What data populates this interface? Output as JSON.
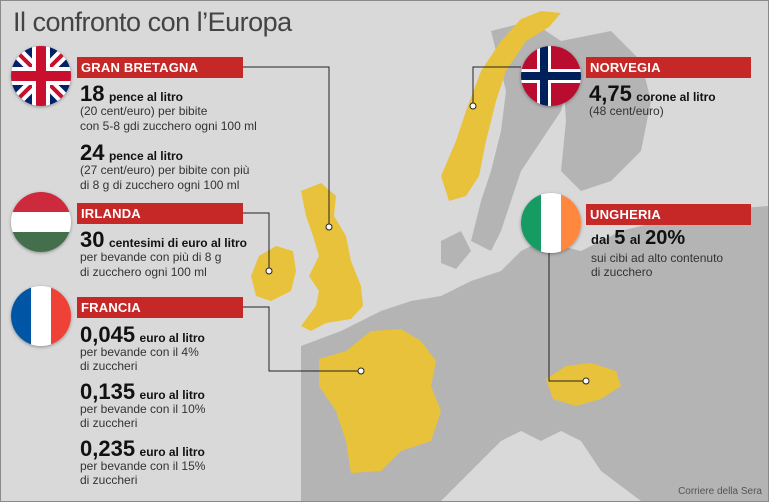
{
  "title": "Il confronto con l’Europa",
  "credit": "Corriere della Sera",
  "colors": {
    "highlight": "#e8c23a",
    "land": "#b4b4b4",
    "sea": "#d9d9d9",
    "accent": "#c62828"
  },
  "gb": {
    "label": "GRAN BRETAGNA",
    "flag": "uk-flag-icon",
    "rate1": {
      "value": "18",
      "unit": "pence al litro",
      "note1": "(20 cent/euro) per bibite",
      "note2": "con 5-8 gdi zucchero ogni 100 ml"
    },
    "rate2": {
      "value": "24",
      "unit": "pence al litro",
      "note1": "(27 cent/euro) per bibite con più",
      "note2": "di 8 g di zucchero ogni 100 ml"
    }
  },
  "ie": {
    "label": "IRLANDA",
    "flag": "hungary-flag-icon",
    "value": "30",
    "unit": "centesimi di euro al litro",
    "note1": "per bevande con più di 8 g",
    "note2": "di zucchero ogni 100 ml"
  },
  "fr": {
    "label": "FRANCIA",
    "flag": "france-flag-icon",
    "rates": [
      {
        "value": "0,045",
        "unit": "euro al litro",
        "note1": "per bevande con il 4%",
        "note2": "di zuccheri"
      },
      {
        "value": "0,135",
        "unit": "euro al litro",
        "note1": "per bevande con il 10%",
        "note2": "di zuccheri"
      },
      {
        "value": "0,235",
        "unit": "euro al litro",
        "note1": "per bevande con il 15%",
        "note2": "di zuccheri"
      }
    ]
  },
  "no": {
    "label": "NORVEGIA",
    "flag": "norway-flag-icon",
    "value": "4,75",
    "unit": "corone al litro",
    "note1": "(48 cent/euro)"
  },
  "hu": {
    "label": "UNGHERIA",
    "flag": "ireland-flag-icon",
    "pre": "dal",
    "v1": "5",
    "mid": "al",
    "v2": "20%",
    "note1": "sui cibi ad alto contenuto",
    "note2": "di zucchero"
  }
}
